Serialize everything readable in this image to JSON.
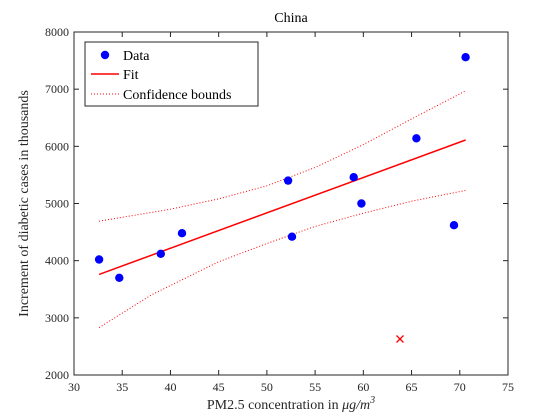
{
  "chart_data": {
    "type": "scatter",
    "title": "China",
    "xlabel_prefix": "PM2.5 concentration in ",
    "xlabel_unit": "μg/m",
    "xlabel_exp": "3",
    "ylabel": "Increment of diabetic cases in thousands",
    "xlim": [
      30,
      75
    ],
    "ylim": [
      2000,
      8000
    ],
    "xticks": [
      30,
      35,
      40,
      45,
      50,
      55,
      60,
      65,
      70,
      75
    ],
    "yticks": [
      2000,
      3000,
      4000,
      5000,
      6000,
      7000,
      8000
    ],
    "grid": false,
    "legend_position": "top-left",
    "legend": [
      "Data",
      "Fit",
      "Confidence bounds"
    ],
    "series": [
      {
        "name": "Data",
        "points": [
          [
            32.6,
            4020
          ],
          [
            34.7,
            3700
          ],
          [
            39.0,
            4120
          ],
          [
            41.2,
            4480
          ],
          [
            52.2,
            5400
          ],
          [
            52.6,
            4420
          ],
          [
            59.0,
            5460
          ],
          [
            59.8,
            5000
          ],
          [
            65.5,
            6140
          ],
          [
            69.4,
            4620
          ],
          [
            70.6,
            7560
          ]
        ]
      },
      {
        "name": "Fit",
        "points": [
          [
            32.6,
            3760
          ],
          [
            70.6,
            6110
          ]
        ]
      },
      {
        "name": "Confidence bounds",
        "upper": [
          [
            32.6,
            4690
          ],
          [
            40,
            4900
          ],
          [
            45,
            5080
          ],
          [
            50,
            5310
          ],
          [
            55,
            5630
          ],
          [
            60,
            6030
          ],
          [
            65,
            6480
          ],
          [
            70.6,
            6970
          ]
        ],
        "lower": [
          [
            32.6,
            2830
          ],
          [
            38,
            3400
          ],
          [
            45,
            3980
          ],
          [
            50,
            4300
          ],
          [
            55,
            4600
          ],
          [
            60,
            4830
          ],
          [
            65,
            5040
          ],
          [
            70.6,
            5230
          ]
        ]
      }
    ],
    "excluded_points": [
      [
        63.8,
        2630
      ]
    ],
    "colors": {
      "data": "#0000ff",
      "fit": "#ff0000",
      "bounds": "#ff0000",
      "excluded": "#ff0000",
      "axes": "#262626"
    }
  }
}
